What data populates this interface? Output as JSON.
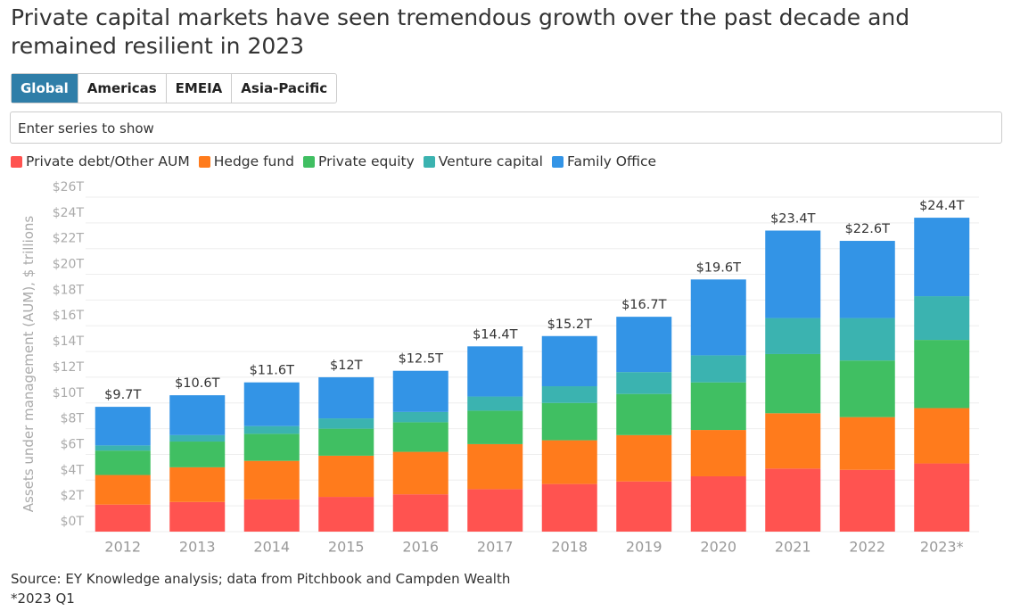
{
  "title": "Private capital markets have seen tremendous growth over the past decade and remained resilient in 2023",
  "tabs": [
    "Global",
    "Americas",
    "EMEIA",
    "Asia-Pacific"
  ],
  "search_placeholder": "Enter series to show",
  "chart_data": {
    "type": "stacked-bar",
    "y_label": "Assets under management (AUM), $ trillions",
    "categories": [
      "2012",
      "2013",
      "2014",
      "2015",
      "2016",
      "2017",
      "2018",
      "2019",
      "2020",
      "2021",
      "2022",
      "2023*"
    ],
    "series": [
      {
        "name": "Private debt/Other AUM",
        "color": "#ff5350",
        "values": [
          2.1,
          2.3,
          2.5,
          2.7,
          2.9,
          3.3,
          3.7,
          3.9,
          4.3,
          4.9,
          4.8,
          5.3
        ]
      },
      {
        "name": "Hedge fund",
        "color": "#ff7b1c",
        "values": [
          2.3,
          2.7,
          3.0,
          3.2,
          3.3,
          3.5,
          3.4,
          3.6,
          3.6,
          4.3,
          4.1,
          4.3
        ]
      },
      {
        "name": "Private equity",
        "color": "#40bf62",
        "values": [
          1.9,
          2.0,
          2.1,
          2.1,
          2.3,
          2.6,
          2.9,
          3.2,
          3.7,
          4.6,
          4.4,
          5.3
        ]
      },
      {
        "name": "Venture capital",
        "color": "#3bb3b0",
        "values": [
          0.4,
          0.5,
          0.6,
          0.8,
          0.8,
          1.1,
          1.3,
          1.7,
          2.1,
          2.8,
          3.3,
          3.4
        ]
      },
      {
        "name": "Family Office",
        "color": "#3394e6",
        "values": [
          3.0,
          3.1,
          3.4,
          3.2,
          3.2,
          3.9,
          3.9,
          4.3,
          5.9,
          6.8,
          6.0,
          6.1
        ]
      }
    ],
    "totals": {
      "values": [
        9.7,
        10.6,
        11.6,
        12,
        12.5,
        14.4,
        15.2,
        16.7,
        19.6,
        23.4,
        22.6,
        24.4
      ],
      "value_labels": [
        "$9.7T",
        "$10.6T",
        "$11.6T",
        "$12T",
        "$12.5T",
        "$14.4T",
        "$15.2T",
        "$16.7T",
        "$19.6T",
        "$23.4T",
        "$22.6T",
        "$24.4T"
      ]
    },
    "ylim": [
      0,
      26
    ],
    "yticks": [
      {
        "value": 0,
        "label": "$0T"
      },
      {
        "value": 2,
        "label": "$2T"
      },
      {
        "value": 4,
        "label": "$4T"
      },
      {
        "value": 6,
        "label": "$6T"
      },
      {
        "value": 8,
        "label": "$8T"
      },
      {
        "value": 10,
        "label": "$10T"
      },
      {
        "value": 12,
        "label": "$12T"
      },
      {
        "value": 14,
        "label": "$14T"
      },
      {
        "value": 16,
        "label": "$16T"
      },
      {
        "value": 18,
        "label": "$18T"
      },
      {
        "value": 20,
        "label": "$20T"
      },
      {
        "value": 22,
        "label": "$22T"
      },
      {
        "value": 24,
        "label": "$24T"
      },
      {
        "value": 26,
        "label": "$26T"
      }
    ],
    "grid": true
  },
  "source": "Source: EY Knowledge analysis; data from Pitchbook and Campden Wealth",
  "note": "*2023 Q1"
}
